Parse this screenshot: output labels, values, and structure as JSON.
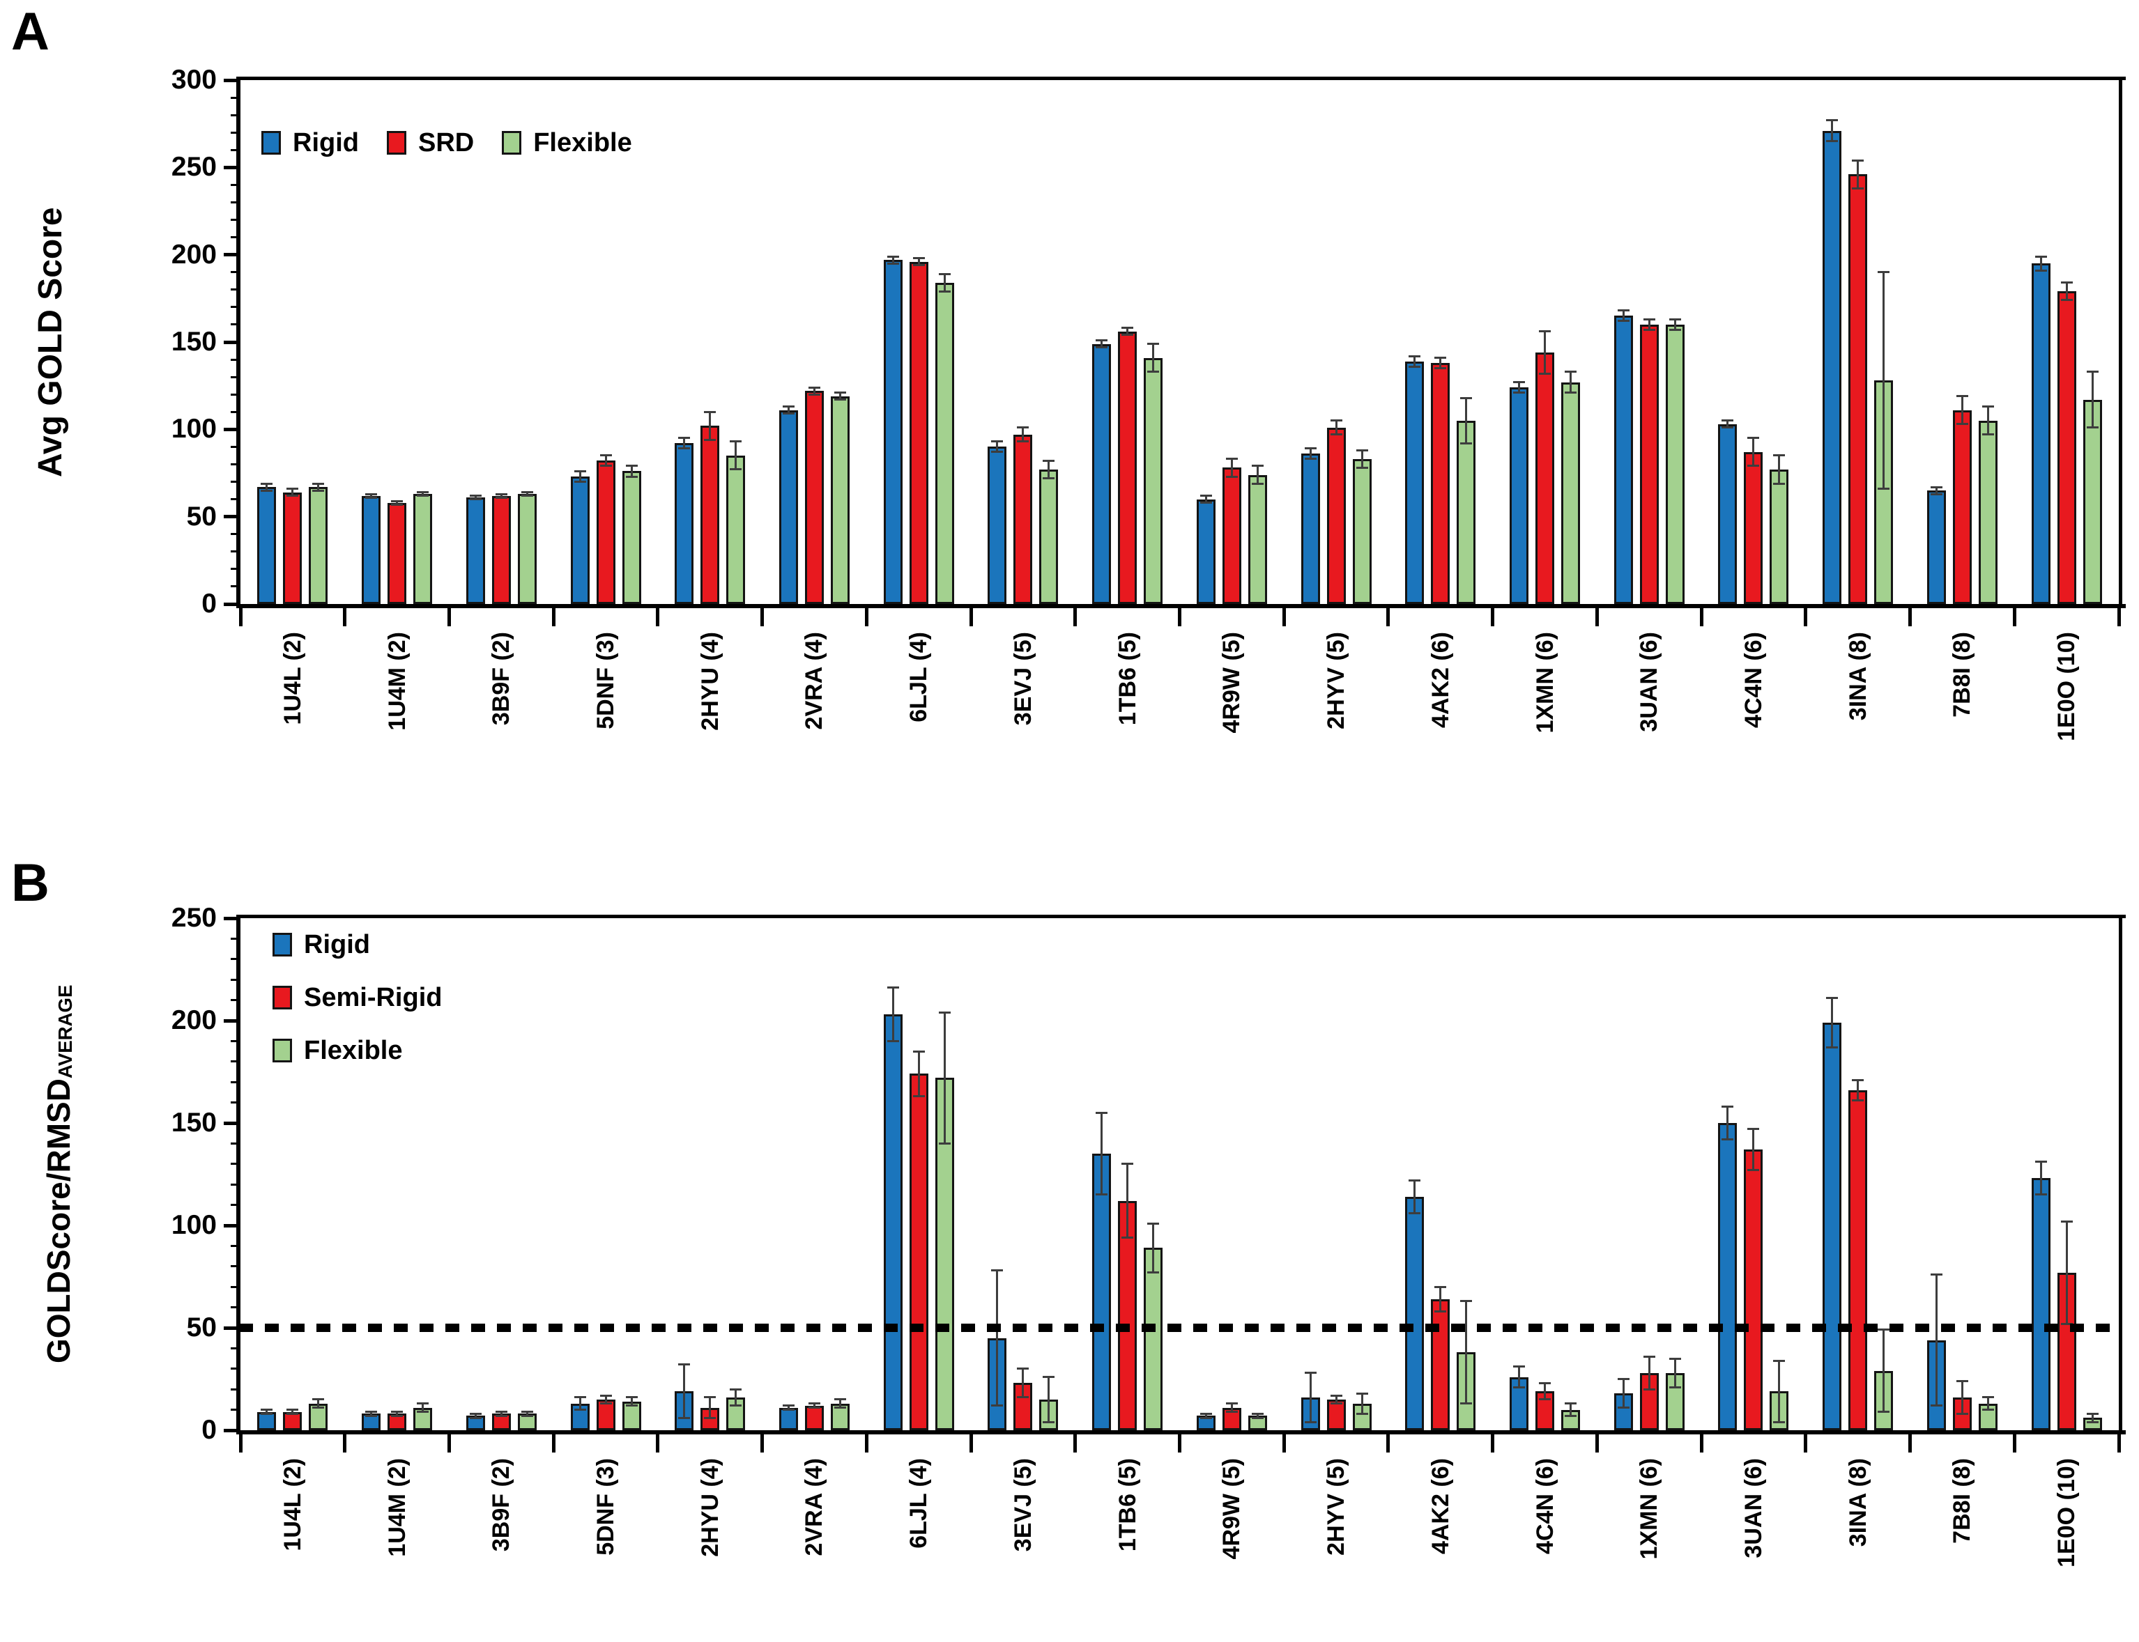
{
  "figure": {
    "panel_a": {
      "letter": "A"
    },
    "panel_b": {
      "letter": "B"
    }
  },
  "chart_data": [
    {
      "id": "panel_a",
      "type": "bar",
      "title": "",
      "xlabel": "",
      "ylabel": "Avg GOLD Score",
      "ylabel_subscript": "",
      "ylim": [
        0,
        300
      ],
      "ytick_step": 50,
      "yminor_step": 10,
      "grid": false,
      "legend_position": "top-left-horizontal",
      "categories": [
        "1U4L (2)",
        "1U4M (2)",
        "3B9F (2)",
        "5DNF (3)",
        "2HYU (4)",
        "2VRA (4)",
        "6LJL (4)",
        "3EVJ (5)",
        "1TB6 (5)",
        "4R9W (5)",
        "2HYV (5)",
        "4AK2 (6)",
        "1XMN (6)",
        "3UAN (6)",
        "4C4N (6)",
        "3INA (8)",
        "7B8I (8)",
        "1E0O (10)"
      ],
      "series": [
        {
          "name": "Rigid",
          "color": "#1B75BC",
          "values": [
            67,
            62,
            61,
            73,
            92,
            111,
            197,
            90,
            149,
            60,
            86,
            139,
            124,
            165,
            103,
            271,
            65,
            195
          ],
          "errors": [
            2,
            1,
            1,
            3,
            3,
            2,
            2,
            3,
            2,
            2,
            3,
            3,
            3,
            3,
            2,
            6,
            2,
            4
          ]
        },
        {
          "name": "SRD",
          "color": "#E8191F",
          "values": [
            64,
            58,
            62,
            82,
            102,
            122,
            196,
            97,
            156,
            78,
            101,
            138,
            144,
            160,
            87,
            246,
            111,
            179
          ],
          "errors": [
            2,
            1,
            1,
            3,
            8,
            2,
            2,
            4,
            2,
            5,
            4,
            3,
            12,
            3,
            8,
            8,
            8,
            5
          ]
        },
        {
          "name": "Flexible",
          "color": "#A3D18F",
          "values": [
            67,
            63,
            63,
            76,
            85,
            119,
            184,
            77,
            141,
            74,
            83,
            105,
            127,
            160,
            77,
            128,
            105,
            117
          ],
          "errors": [
            2,
            1,
            1,
            3,
            8,
            2,
            5,
            5,
            8,
            5,
            5,
            13,
            6,
            3,
            8,
            62,
            8,
            16
          ]
        }
      ]
    },
    {
      "id": "panel_b",
      "type": "bar",
      "title": "",
      "xlabel": "",
      "ylabel": "GOLDScore/RMSD",
      "ylabel_subscript": "AVERAGE",
      "ylim": [
        0,
        250
      ],
      "ytick_step": 50,
      "yminor_step": 10,
      "grid": false,
      "reference_line_y": 50,
      "legend_position": "top-left-vertical",
      "categories": [
        "1U4L (2)",
        "1U4M (2)",
        "3B9F (2)",
        "5DNF (3)",
        "2HYU (4)",
        "2VRA (4)",
        "6LJL (4)",
        "3EVJ (5)",
        "1TB6 (5)",
        "4R9W (5)",
        "2HYV (5)",
        "4AK2 (6)",
        "4C4N (6)",
        "1XMN (6)",
        "3UAN (6)",
        "3INA (8)",
        "7B8I (8)",
        "1E0O (10)"
      ],
      "series": [
        {
          "name": "Rigid",
          "color": "#1B75BC",
          "values": [
            9,
            8,
            7,
            13,
            19,
            11,
            203,
            45,
            135,
            7,
            16,
            114,
            26,
            18,
            150,
            199,
            44,
            123
          ],
          "errors": [
            1,
            1,
            1,
            3,
            13,
            1,
            13,
            33,
            20,
            1,
            12,
            8,
            5,
            7,
            8,
            12,
            32,
            8
          ]
        },
        {
          "name": "Semi-Rigid",
          "color": "#E8191F",
          "values": [
            9,
            8,
            8,
            15,
            11,
            12,
            174,
            23,
            112,
            11,
            15,
            64,
            19,
            28,
            137,
            166,
            16,
            77
          ],
          "errors": [
            1,
            1,
            1,
            2,
            5,
            1,
            11,
            7,
            18,
            2,
            2,
            6,
            4,
            8,
            10,
            5,
            8,
            25
          ]
        },
        {
          "name": "Flexible",
          "color": "#A3D18F",
          "values": [
            13,
            11,
            8,
            14,
            16,
            13,
            172,
            15,
            89,
            7,
            13,
            38,
            10,
            28,
            19,
            29,
            13,
            6
          ],
          "errors": [
            2,
            2,
            1,
            2,
            4,
            2,
            32,
            11,
            12,
            1,
            5,
            25,
            3,
            7,
            15,
            20,
            3,
            2
          ]
        }
      ]
    }
  ]
}
